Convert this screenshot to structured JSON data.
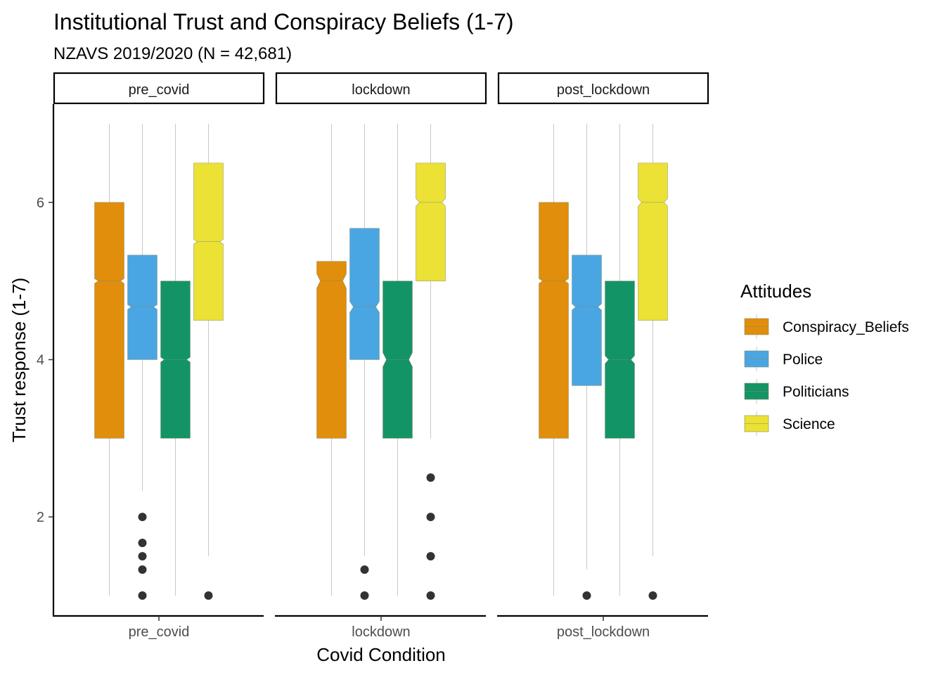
{
  "chart_data": {
    "type": "boxplot",
    "title": "Institutional Trust and Conspiracy Beliefs (1-7)",
    "subtitle": "NZAVS 2019/2020  (N = 42,681)",
    "xlabel": "Covid Condition",
    "ylabel": "Trust response (1-7)",
    "ylim": [
      0.75,
      7.25
    ],
    "yticks": [
      2,
      4,
      6
    ],
    "grid": false,
    "legend": {
      "title": "Attitudes",
      "position": "right",
      "items": [
        "Conspiracy_Beliefs",
        "Police",
        "Politicians",
        "Science"
      ]
    },
    "colors": {
      "Conspiracy_Beliefs": "#E08E0B",
      "Police": "#49A6E3",
      "Politicians": "#139466",
      "Science": "#ECE135"
    },
    "panels": [
      {
        "name": "pre_covid",
        "x_tick": "pre_covid",
        "boxes": [
          {
            "series": "Conspiracy_Beliefs",
            "q1": 3,
            "median": 5,
            "q3": 6,
            "notch_low": 4.97,
            "notch_high": 5.03,
            "whisker_low": 1,
            "whisker_high": 7,
            "outliers": []
          },
          {
            "series": "Police",
            "q1": 4,
            "median": 4.67,
            "q3": 5.33,
            "notch_low": 4.64,
            "notch_high": 4.7,
            "whisker_low": 2.33,
            "whisker_high": 7,
            "outliers": [
              2,
              1.67,
              1.5,
              1.33,
              1
            ]
          },
          {
            "series": "Politicians",
            "q1": 3,
            "median": 4,
            "q3": 5,
            "notch_low": 3.97,
            "notch_high": 4.03,
            "whisker_low": 1,
            "whisker_high": 7,
            "outliers": []
          },
          {
            "series": "Science",
            "q1": 4.5,
            "median": 5.5,
            "q3": 6.5,
            "notch_low": 5.47,
            "notch_high": 5.53,
            "whisker_low": 1.5,
            "whisker_high": 7,
            "outliers": [
              1
            ]
          }
        ]
      },
      {
        "name": "lockdown",
        "x_tick": "lockdown",
        "boxes": [
          {
            "series": "Conspiracy_Beliefs",
            "q1": 3,
            "median": 5,
            "q3": 5.25,
            "notch_low": 4.91,
            "notch_high": 5.09,
            "whisker_low": 1,
            "whisker_high": 7,
            "outliers": []
          },
          {
            "series": "Police",
            "q1": 4,
            "median": 4.67,
            "q3": 5.67,
            "notch_low": 4.6,
            "notch_high": 4.74,
            "whisker_low": 1.5,
            "whisker_high": 7,
            "outliers": [
              1.33,
              1
            ]
          },
          {
            "series": "Politicians",
            "q1": 3,
            "median": 4,
            "q3": 5,
            "notch_low": 3.91,
            "notch_high": 4.09,
            "whisker_low": 1,
            "whisker_high": 7,
            "outliers": []
          },
          {
            "series": "Science",
            "q1": 5,
            "median": 6,
            "q3": 6.5,
            "notch_low": 5.95,
            "notch_high": 6.05,
            "whisker_low": 3,
            "whisker_high": 7,
            "outliers": [
              2.5,
              2,
              1.5,
              1
            ]
          }
        ]
      },
      {
        "name": "post_lockdown",
        "x_tick": "post_lockdown",
        "boxes": [
          {
            "series": "Conspiracy_Beliefs",
            "q1": 3,
            "median": 5,
            "q3": 6,
            "notch_low": 4.97,
            "notch_high": 5.03,
            "whisker_low": 1,
            "whisker_high": 7,
            "outliers": []
          },
          {
            "series": "Police",
            "q1": 3.67,
            "median": 4.67,
            "q3": 5.33,
            "notch_low": 4.63,
            "notch_high": 4.71,
            "whisker_low": 1.33,
            "whisker_high": 7,
            "outliers": [
              1
            ]
          },
          {
            "series": "Politicians",
            "q1": 3,
            "median": 4,
            "q3": 5,
            "notch_low": 3.95,
            "notch_high": 4.05,
            "whisker_low": 1,
            "whisker_high": 7,
            "outliers": []
          },
          {
            "series": "Science",
            "q1": 4.5,
            "median": 6,
            "q3": 6.5,
            "notch_low": 5.95,
            "notch_high": 6.05,
            "whisker_low": 1.5,
            "whisker_high": 7,
            "outliers": [
              1
            ]
          }
        ]
      }
    ]
  }
}
